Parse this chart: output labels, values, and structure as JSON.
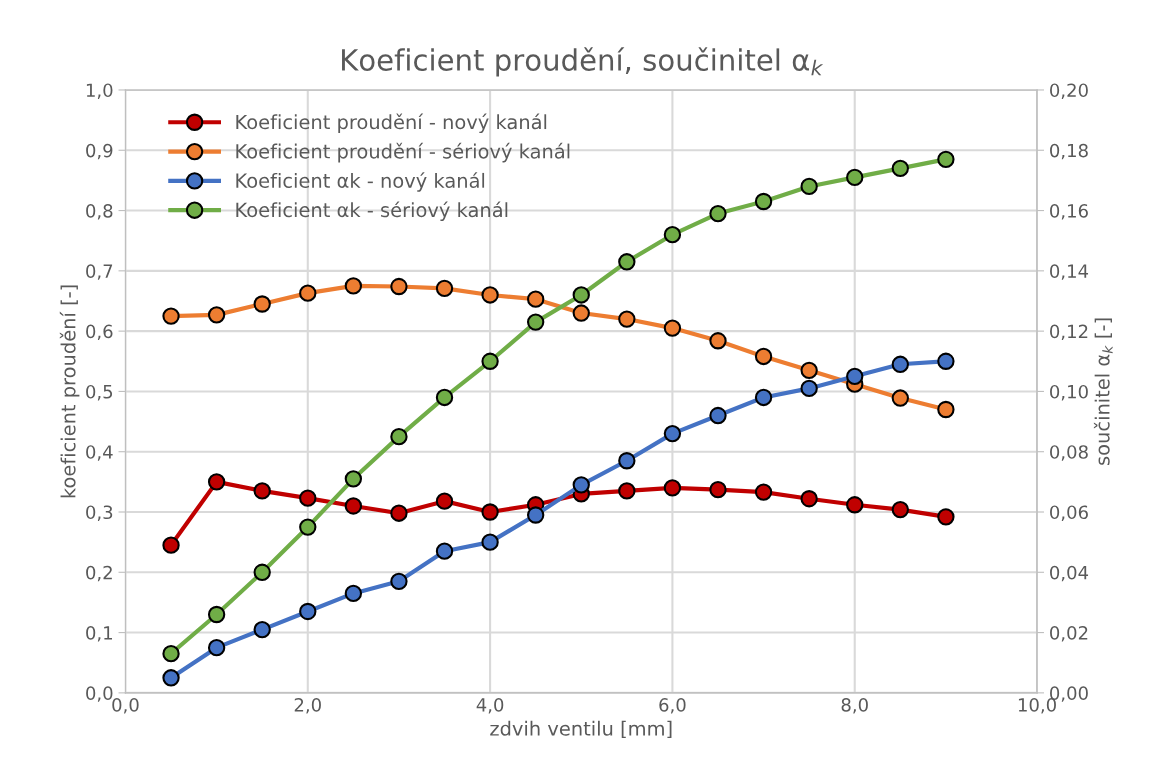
{
  "chart_data": {
    "type": "line",
    "title": "Koeficient proudění, součinitel α$_{k}$",
    "xlabel": "zdvih ventilu [mm]",
    "ylabel": "koeficient proudění [-]",
    "y2label": "součinitel α$_{k}$ [-]",
    "x": [
      0.5,
      1.0,
      1.5,
      2.0,
      2.5,
      3.0,
      3.5,
      4.0,
      4.5,
      5.0,
      5.5,
      6.0,
      6.5,
      7.0,
      7.5,
      8.0,
      8.5,
      9.0
    ],
    "series": [
      {
        "name": "Koeficient proudění - nový kanál",
        "color": "#c00000",
        "values": [
          0.245,
          0.35,
          0.335,
          0.323,
          0.31,
          0.298,
          0.318,
          0.3,
          0.312,
          0.33,
          0.335,
          0.34,
          0.337,
          0.333,
          0.322,
          0.312,
          0.304,
          0.292
        ]
      },
      {
        "name": "Koeficient proudění - sériový kanál",
        "color": "#ed7d31",
        "values": [
          0.625,
          0.627,
          0.645,
          0.663,
          0.675,
          0.674,
          0.671,
          0.66,
          0.653,
          0.63,
          0.62,
          0.605,
          0.584,
          0.558,
          0.535,
          0.512,
          0.489,
          0.47
        ]
      },
      {
        "name": "Koeficient αk - nový kanál",
        "color": "#4472c4",
        "axis": "y2",
        "values": [
          0.005,
          0.015,
          0.021,
          0.027,
          0.033,
          0.037,
          0.047,
          0.05,
          0.059,
          0.069,
          0.077,
          0.086,
          0.092,
          0.098,
          0.101,
          0.105,
          0.109,
          0.11
        ]
      },
      {
        "name": "Koeficient αk - sériový kanál",
        "color": "#70ad47",
        "axis": "y2",
        "values": [
          0.013,
          0.026,
          0.04,
          0.055,
          0.071,
          0.085,
          0.098,
          0.11,
          0.123,
          0.132,
          0.143,
          0.152,
          0.159,
          0.163,
          0.168,
          0.171,
          0.174,
          0.177
        ]
      }
    ],
    "xlim": [
      0,
      10
    ],
    "xticks": [
      {
        "value": 0,
        "label": "0,0"
      },
      {
        "value": 2,
        "label": "2,0"
      },
      {
        "value": 4,
        "label": "4,0"
      },
      {
        "value": 6,
        "label": "6,0"
      },
      {
        "value": 8,
        "label": "8,0"
      },
      {
        "value": 10,
        "label": "10,0"
      }
    ],
    "ylim": [
      0,
      1
    ],
    "yticks": [
      {
        "value": 0,
        "label": "0,0"
      },
      {
        "value": 0.1,
        "label": "0,1"
      },
      {
        "value": 0.2,
        "label": "0,2"
      },
      {
        "value": 0.3,
        "label": "0,3"
      },
      {
        "value": 0.4,
        "label": "0,4"
      },
      {
        "value": 0.5,
        "label": "0,5"
      },
      {
        "value": 0.6,
        "label": "0,6"
      },
      {
        "value": 0.7,
        "label": "0,7"
      },
      {
        "value": 0.8,
        "label": "0,8"
      },
      {
        "value": 0.9,
        "label": "0,9"
      },
      {
        "value": 1,
        "label": "1,0"
      }
    ],
    "y2lim": [
      0,
      0.2
    ],
    "y2ticks": [
      {
        "value": 0,
        "label": "0,00"
      },
      {
        "value": 0.02,
        "label": "0,02"
      },
      {
        "value": 0.04,
        "label": "0,04"
      },
      {
        "value": 0.06,
        "label": "0,06"
      },
      {
        "value": 0.08,
        "label": "0,08"
      },
      {
        "value": 0.1,
        "label": "0,10"
      },
      {
        "value": 0.12,
        "label": "0,12"
      },
      {
        "value": 0.14,
        "label": "0,14"
      },
      {
        "value": 0.16,
        "label": "0,16"
      },
      {
        "value": 0.18,
        "label": "0,18"
      },
      {
        "value": 0.2,
        "label": "0,20"
      }
    ],
    "grid": true,
    "legend": "top left",
    "marker": "circle",
    "line_style": "solid"
  }
}
